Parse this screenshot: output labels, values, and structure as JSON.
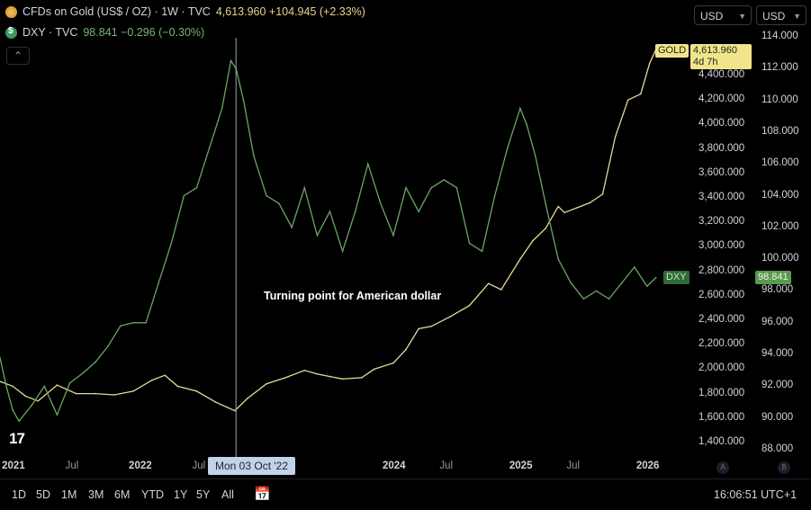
{
  "legend": {
    "gold": {
      "title": "CFDs on Gold (US$ / OZ) · 1W · TVC",
      "values": "4,613.960  +104.945 (+2.33%)"
    },
    "dxy": {
      "title": "DXY · TVC",
      "values": "98.841  −0.296 (−0.30%)"
    }
  },
  "currency_selects": [
    "USD",
    "USD"
  ],
  "collapse_icon": "chevron-up-icon",
  "annotation": "Turning point for American dollar",
  "crosshair_date": "Mon 03 Oct '22",
  "time_axis": [
    "2021",
    "Jul",
    "2022",
    "Jul",
    "2024",
    "Jul",
    "2025",
    "Jul",
    "2026"
  ],
  "timeframes": [
    "1D",
    "5D",
    "1M",
    "3M",
    "6M",
    "YTD",
    "1Y",
    "5Y",
    "All"
  ],
  "clock": "16:06:51 UTC+1",
  "axis_buttons": [
    "A",
    "B"
  ],
  "tags": {
    "gold_name": "GOLD",
    "gold_value": "4,613.960",
    "gold_countdown": "4d 7h",
    "dxy_name": "DXY",
    "dxy_value": "98.841"
  },
  "chart_data": {
    "type": "line",
    "xlim": [
      2020.9,
      2026.15
    ],
    "y_left": {
      "title": "",
      "ticks": [
        "4,400.000",
        "4,200.000",
        "4,000.000",
        "3,800.000",
        "3,600.000",
        "3,400.000",
        "3,200.000",
        "3,000.000",
        "2,800.000",
        "2,600.000",
        "2,400.000",
        "2,200.000",
        "2,000.000",
        "1,800.000",
        "1,600.000",
        "1,400.000"
      ],
      "range": [
        1350,
        4550
      ]
    },
    "y_right": {
      "title": "",
      "ticks": [
        "114.000",
        "112.000",
        "110.000",
        "108.000",
        "106.000",
        "104.000",
        "102.000",
        "100.000",
        "98.000",
        "96.000",
        "94.000",
        "92.000",
        "90.000",
        "88.000"
      ],
      "range": [
        87.6,
        114.4
      ]
    },
    "series": [
      {
        "name": "GOLD",
        "color": "#e6d99a",
        "axis": "left",
        "x": [
          2020.9,
          2021.0,
          2021.1,
          2021.2,
          2021.35,
          2021.5,
          2021.65,
          2021.8,
          2021.95,
          2022.1,
          2022.2,
          2022.3,
          2022.45,
          2022.6,
          2022.75,
          2022.85,
          2023.0,
          2023.15,
          2023.3,
          2023.4,
          2023.5,
          2023.6,
          2023.75,
          2023.85,
          2024.0,
          2024.1,
          2024.2,
          2024.3,
          2024.45,
          2024.6,
          2024.75,
          2024.85,
          2025.0,
          2025.1,
          2025.2,
          2025.3,
          2025.35,
          2025.45,
          2025.55,
          2025.65,
          2025.75,
          2025.85,
          2025.95,
          2026.02,
          2026.07
        ],
        "y": [
          1900,
          1860,
          1780,
          1740,
          1870,
          1800,
          1800,
          1790,
          1820,
          1910,
          1950,
          1860,
          1820,
          1730,
          1660,
          1760,
          1880,
          1930,
          1990,
          1960,
          1940,
          1920,
          1930,
          2000,
          2050,
          2160,
          2330,
          2350,
          2430,
          2520,
          2700,
          2650,
          2900,
          3050,
          3150,
          3330,
          3280,
          3320,
          3360,
          3430,
          3900,
          4200,
          4250,
          4500,
          4613
        ]
      },
      {
        "name": "DXY",
        "color": "#6aa864",
        "axis": "right",
        "x": [
          2020.9,
          2020.95,
          2021.0,
          2021.05,
          2021.15,
          2021.25,
          2021.35,
          2021.45,
          2021.55,
          2021.65,
          2021.75,
          2021.85,
          2021.95,
          2022.05,
          2022.15,
          2022.25,
          2022.35,
          2022.45,
          2022.55,
          2022.65,
          2022.72,
          2022.76,
          2022.82,
          2022.9,
          2023.0,
          2023.1,
          2023.2,
          2023.3,
          2023.4,
          2023.5,
          2023.6,
          2023.7,
          2023.8,
          2023.9,
          2024.0,
          2024.1,
          2024.2,
          2024.3,
          2024.4,
          2024.5,
          2024.6,
          2024.7,
          2024.8,
          2024.9,
          2025.0,
          2025.05,
          2025.12,
          2025.2,
          2025.3,
          2025.4,
          2025.5,
          2025.6,
          2025.7,
          2025.8,
          2025.9,
          2026.0,
          2026.07
        ],
        "y": [
          93.8,
          92.0,
          90.5,
          89.8,
          90.8,
          92.0,
          90.2,
          92.2,
          92.8,
          93.5,
          94.5,
          95.8,
          96.0,
          96.0,
          98.5,
          101.0,
          104.0,
          104.5,
          107.0,
          109.5,
          112.5,
          112.0,
          110.0,
          106.5,
          104.0,
          103.5,
          102.0,
          104.5,
          101.5,
          103.0,
          100.5,
          103.0,
          106.0,
          103.5,
          101.5,
          104.5,
          103.0,
          104.5,
          105.0,
          104.5,
          101.0,
          100.5,
          104.0,
          107.0,
          109.5,
          108.5,
          106.5,
          103.5,
          100.0,
          98.5,
          97.5,
          98.0,
          97.5,
          98.5,
          99.5,
          98.3,
          98.841
        ]
      }
    ],
    "crosshair_x": 2022.76
  }
}
